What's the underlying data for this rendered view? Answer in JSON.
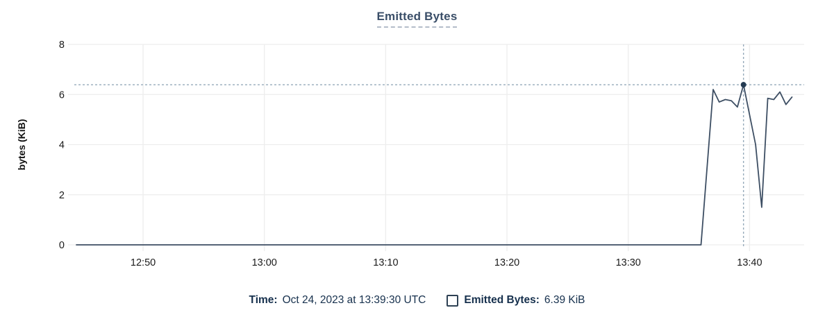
{
  "title": "Emitted Bytes",
  "chart_data": {
    "type": "line",
    "title": "Emitted Bytes",
    "xlabel": "",
    "ylabel": "bytes (KiB)",
    "ylim": [
      0,
      8
    ],
    "y_ticks": [
      0,
      2,
      4,
      6,
      8
    ],
    "x_ticks": [
      "12:50",
      "13:00",
      "13:10",
      "13:20",
      "13:30",
      "13:40"
    ],
    "x_domain": [
      "12:44:30",
      "13:44:30"
    ],
    "grid": true,
    "legend_position": "bottom",
    "series": [
      {
        "name": "Emitted Bytes",
        "color": "#3d4e63",
        "points": [
          [
            "12:44:30",
            0
          ],
          [
            "13:36:00",
            0
          ],
          [
            "13:37:00",
            6.2
          ],
          [
            "13:37:30",
            5.7
          ],
          [
            "13:38:00",
            5.8
          ],
          [
            "13:38:30",
            5.75
          ],
          [
            "13:39:00",
            5.5
          ],
          [
            "13:39:30",
            6.39
          ],
          [
            "13:40:30",
            4.0
          ],
          [
            "13:41:00",
            1.5
          ],
          [
            "13:41:30",
            5.85
          ],
          [
            "13:42:00",
            5.8
          ],
          [
            "13:42:30",
            6.1
          ],
          [
            "13:43:00",
            5.6
          ],
          [
            "13:43:30",
            5.9
          ]
        ]
      }
    ],
    "crosshair": {
      "time": "13:39:30",
      "value": 6.39
    }
  },
  "legend": {
    "time_label": "Time:",
    "time_value": "Oct 24, 2023 at 13:39:30 UTC",
    "series_label": "Emitted Bytes:",
    "series_value": "6.39 KiB"
  },
  "colors": {
    "line": "#3d4e63",
    "marker": "#243b52",
    "crosshair": "#96aaba",
    "grid": "#ededed",
    "axis_text": "#1a1a1a",
    "axis_title_text": "#111111",
    "title_text": "#3a4e68",
    "legend_text": "#16304d"
  }
}
